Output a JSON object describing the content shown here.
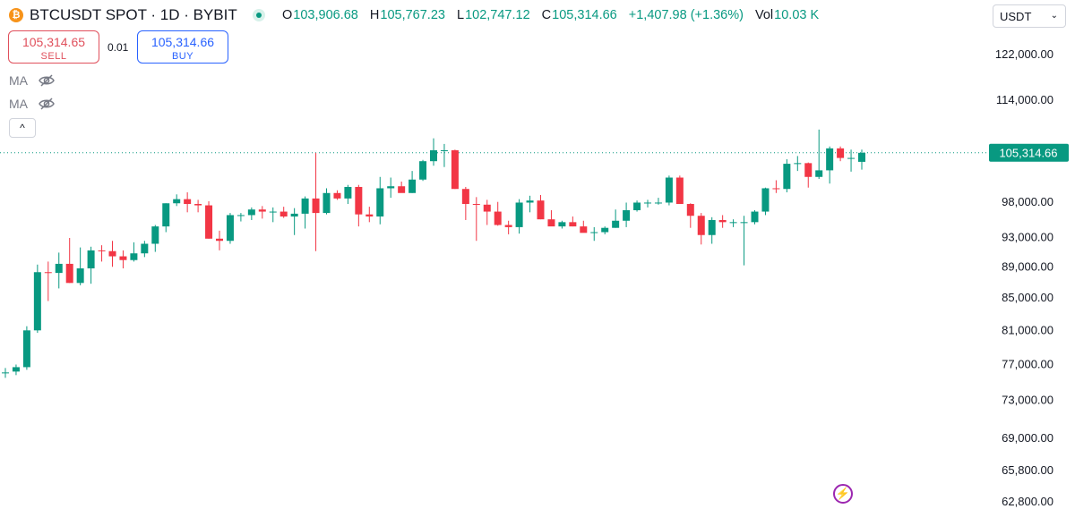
{
  "header": {
    "coin_glyph": "₿",
    "symbol": "BTCUSDT SPOT · 1D · BYBIT",
    "ohlc": {
      "o_label": "O",
      "o": "103,906.68",
      "h_label": "H",
      "h": "105,767.23",
      "l_label": "L",
      "l": "102,747.12",
      "c_label": "C",
      "c": "105,314.66",
      "change": "+1,407.98 (+1.36%)",
      "vol_label": "Vol",
      "vol": "10.03 K"
    },
    "currency": "USDT",
    "currency_chevron": "⌄"
  },
  "trade": {
    "sell_price": "105,314.65",
    "sell_label": "SELL",
    "spread": "0.01",
    "buy_price": "105,314.66",
    "buy_label": "BUY"
  },
  "indicators": [
    {
      "label": "MA",
      "icon": "eye-off-icon"
    },
    {
      "label": "MA",
      "icon": "eye-off-icon"
    }
  ],
  "collapse_glyph": "^",
  "flash_glyph": "⚡",
  "colors": {
    "up": "#089981",
    "down": "#f23645",
    "price_line": "#089981"
  },
  "chart_data": {
    "type": "candlestick",
    "y_ticks": [
      "122,000.00",
      "114,000.00",
      "105,314.66",
      "98,000.00",
      "93,000.00",
      "89,000.00",
      "85,000.00",
      "81,000.00",
      "77,000.00",
      "73,000.00",
      "69,000.00",
      "65,800.00",
      "62,800.00"
    ],
    "y_tick_values": [
      122000,
      114000,
      106000,
      98000,
      93000,
      89000,
      85000,
      81000,
      77000,
      73000,
      69000,
      65800,
      62800
    ],
    "last_price": 105314.66,
    "last_price_label": "105,314.66",
    "y_scale": "log",
    "ylim": [
      62800,
      125000
    ],
    "candles": [
      [
        75900,
        76500,
        75400,
        76000
      ],
      [
        76100,
        76900,
        75700,
        76600
      ],
      [
        76600,
        81400,
        76300,
        80900
      ],
      [
        80900,
        89200,
        80600,
        88200
      ],
      [
        88200,
        89600,
        84500,
        88100
      ],
      [
        88100,
        90800,
        86100,
        89300
      ],
      [
        89300,
        92800,
        86800,
        86800
      ],
      [
        86800,
        91500,
        86500,
        88700
      ],
      [
        88700,
        91600,
        86700,
        91100
      ],
      [
        91100,
        91800,
        89600,
        91000
      ],
      [
        91000,
        92400,
        88900,
        90300
      ],
      [
        90300,
        91100,
        88700,
        89800
      ],
      [
        89800,
        92200,
        89600,
        90700
      ],
      [
        90700,
        92400,
        90200,
        92000
      ],
      [
        92000,
        94600,
        90900,
        94400
      ],
      [
        94400,
        97700,
        93600,
        97700
      ],
      [
        97700,
        99000,
        97300,
        98300
      ],
      [
        98300,
        99300,
        96400,
        97600
      ],
      [
        97600,
        98200,
        96400,
        97400
      ],
      [
        97400,
        98000,
        92700,
        92700
      ],
      [
        92700,
        93800,
        91100,
        92400
      ],
      [
        92400,
        96300,
        92000,
        96000
      ],
      [
        96000,
        96300,
        95100,
        96000
      ],
      [
        96000,
        97100,
        95300,
        96800
      ],
      [
        96800,
        97300,
        95500,
        96500
      ],
      [
        96500,
        97100,
        95000,
        96500
      ],
      [
        96500,
        97200,
        95600,
        95800
      ],
      [
        95800,
        97000,
        93200,
        96200
      ],
      [
        96200,
        98700,
        94100,
        98400
      ],
      [
        98400,
        105300,
        91000,
        96300
      ],
      [
        96300,
        99900,
        96100,
        99200
      ],
      [
        99200,
        99600,
        98200,
        98400
      ],
      [
        98400,
        100400,
        97600,
        100100
      ],
      [
        100100,
        100400,
        94400,
        96100
      ],
      [
        96100,
        97200,
        95000,
        95800
      ],
      [
        95800,
        101600,
        94700,
        99900
      ],
      [
        99900,
        101500,
        98500,
        100200
      ],
      [
        100200,
        100900,
        99300,
        99200
      ],
      [
        99200,
        102500,
        99200,
        101200
      ],
      [
        101200,
        104200,
        101000,
        104000
      ],
      [
        104000,
        107600,
        103300,
        105700
      ],
      [
        105700,
        106700,
        103100,
        105700
      ],
      [
        105700,
        105800,
        99800,
        99800
      ],
      [
        99800,
        100100,
        95300,
        97600
      ],
      [
        97600,
        98600,
        92400,
        97500
      ],
      [
        97500,
        98200,
        94600,
        96500
      ],
      [
        96500,
        97900,
        94500,
        94600
      ],
      [
        94600,
        95200,
        93300,
        94300
      ],
      [
        94300,
        98300,
        93400,
        97800
      ],
      [
        97800,
        98800,
        96400,
        98100
      ],
      [
        98100,
        98900,
        95400,
        95400
      ],
      [
        95400,
        96700,
        94600,
        94400
      ],
      [
        94400,
        95200,
        94100,
        95000
      ],
      [
        95000,
        95800,
        94400,
        94400
      ],
      [
        94400,
        95200,
        93800,
        93500
      ],
      [
        93500,
        94300,
        92400,
        93600
      ],
      [
        93600,
        94400,
        93300,
        94200
      ],
      [
        94200,
        96800,
        94200,
        95200
      ],
      [
        95200,
        97800,
        94300,
        96700
      ],
      [
        96700,
        98100,
        96500,
        97800
      ],
      [
        97800,
        98200,
        97100,
        97800
      ],
      [
        97800,
        98500,
        97500,
        97800
      ],
      [
        97800,
        101800,
        97400,
        101500
      ],
      [
        101500,
        101800,
        97700,
        97600
      ],
      [
        97600,
        97700,
        94200,
        95900
      ],
      [
        95900,
        96300,
        91900,
        93200
      ],
      [
        93200,
        95700,
        92000,
        95300
      ],
      [
        95300,
        96000,
        94200,
        95000
      ],
      [
        95000,
        95400,
        94300,
        95000
      ],
      [
        95000,
        95900,
        89100,
        95000
      ],
      [
        95000,
        96700,
        94700,
        96500
      ],
      [
        96500,
        100000,
        96000,
        99900
      ],
      [
        99900,
        101100,
        99200,
        99800
      ],
      [
        99800,
        104300,
        99300,
        103600
      ],
      [
        103600,
        104800,
        102500,
        103700
      ],
      [
        103700,
        103800,
        100000,
        101600
      ],
      [
        101600,
        109000,
        101300,
        102600
      ],
      [
        102600,
        106300,
        100600,
        106000
      ],
      [
        106000,
        106300,
        104000,
        104500
      ],
      [
        104500,
        105800,
        102400,
        104500
      ],
      [
        103900,
        105800,
        102700,
        105300
      ]
    ]
  }
}
